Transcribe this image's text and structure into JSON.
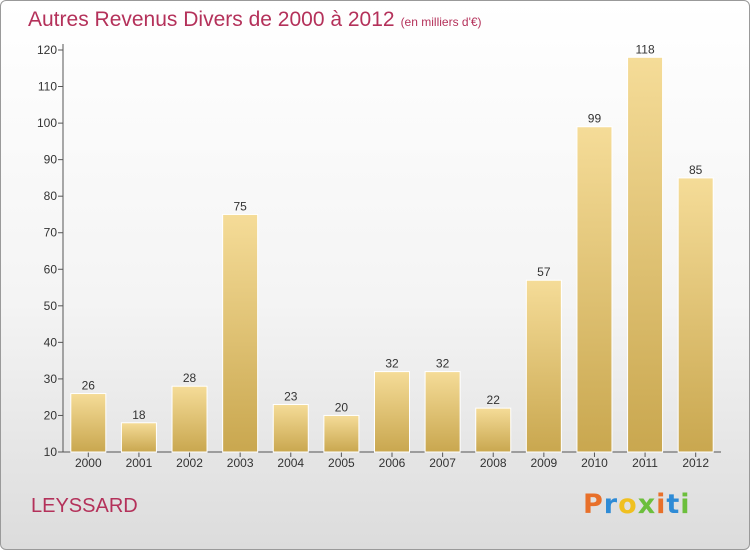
{
  "header": {
    "title": "Autres Revenus Divers de 2000 à 2012",
    "subtitle": "(en milliers d'€)"
  },
  "footer": {
    "commune": "LEYSSARD",
    "logo": {
      "letters": [
        "P",
        "r",
        "o",
        "x",
        "i",
        "t",
        "i"
      ],
      "colors": [
        "#e8702a",
        "#2e8bd6",
        "#f0c020",
        "#6cbf3c",
        "#e8702a",
        "#2e8bd6",
        "#6cbf3c"
      ]
    }
  },
  "colors": {
    "bar_light": "#f5dc98",
    "bar_dark": "#c9a74f",
    "bar_stroke": "#ffffff",
    "text": "#333333"
  },
  "chart_data": {
    "type": "bar",
    "title": "Autres Revenus Divers de 2000 à 2012",
    "subtitle": "(en milliers d'€)",
    "categories": [
      "2000",
      "2001",
      "2002",
      "2003",
      "2004",
      "2005",
      "2006",
      "2007",
      "2008",
      "2009",
      "2010",
      "2011",
      "2012"
    ],
    "values": [
      26,
      18,
      28,
      75,
      23,
      20,
      32,
      32,
      22,
      57,
      99,
      118,
      85
    ],
    "ylim": [
      10,
      120
    ],
    "yticks": [
      10,
      20,
      30,
      40,
      50,
      60,
      70,
      80,
      90,
      100,
      110,
      120
    ],
    "grid": false,
    "data_labels": true
  }
}
